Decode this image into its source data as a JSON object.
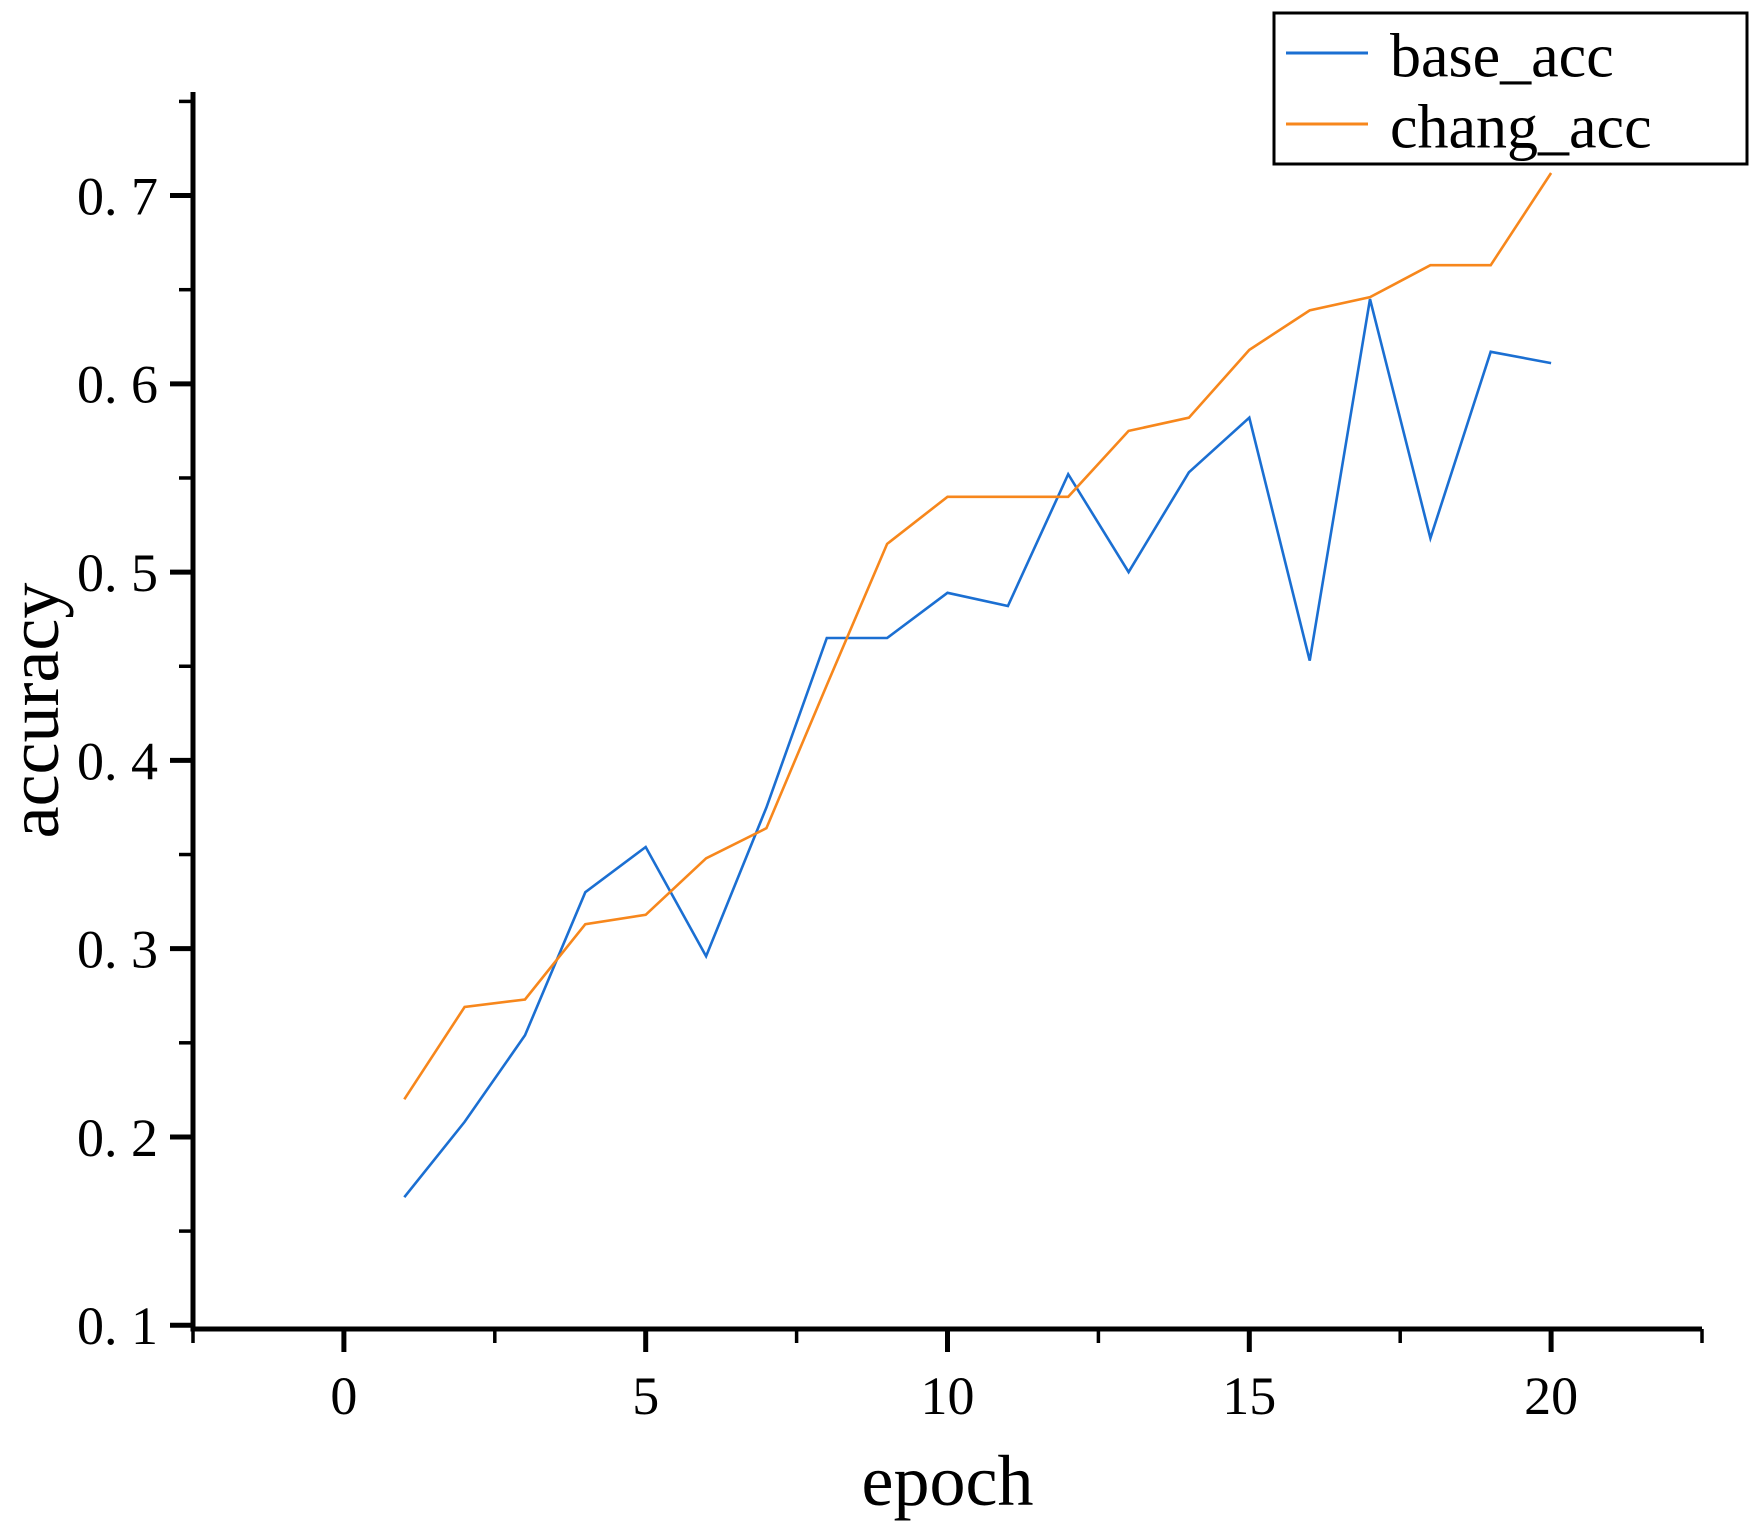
{
  "chart_data": {
    "type": "line",
    "title": "",
    "xlabel": "epoch",
    "ylabel": "accuracy",
    "xlim": [
      -2.5,
      22.5
    ],
    "ylim": [
      0.098,
      0.755
    ],
    "grid": false,
    "legend_position": "upper right",
    "x_major_ticks": [
      0,
      5,
      10,
      15,
      20
    ],
    "x_minor_ticks": [
      -2.5,
      2.5,
      7.5,
      12.5,
      17.5,
      22.5
    ],
    "x_tick_labels": [
      "0",
      "5",
      "10",
      "15",
      "20"
    ],
    "y_major_ticks": [
      0.1,
      0.2,
      0.3,
      0.4,
      0.5,
      0.6,
      0.7
    ],
    "y_minor_ticks": [
      0.15,
      0.25,
      0.35,
      0.45,
      0.55,
      0.65,
      0.75
    ],
    "y_tick_labels": [
      "0. 1",
      "0. 2",
      "0. 3",
      "0. 4",
      "0. 5",
      "0. 6",
      "0. 7"
    ],
    "x": [
      1,
      2,
      3,
      4,
      5,
      6,
      7,
      8,
      9,
      10,
      11,
      12,
      13,
      14,
      15,
      16,
      17,
      18,
      19,
      20
    ],
    "series": [
      {
        "name": "base_acc",
        "color": "#1b6fd2",
        "values": [
          0.168,
          0.208,
          0.254,
          0.33,
          0.354,
          0.296,
          0.375,
          0.465,
          0.465,
          0.489,
          0.482,
          0.552,
          0.5,
          0.553,
          0.582,
          0.453,
          0.645,
          0.518,
          0.617,
          0.611
        ]
      },
      {
        "name": "chang_acc",
        "color": "#f7871c",
        "values": [
          0.22,
          0.269,
          0.273,
          0.313,
          0.318,
          0.348,
          0.364,
          0.44,
          0.515,
          0.54,
          0.54,
          0.54,
          0.575,
          0.582,
          0.618,
          0.639,
          0.646,
          0.663,
          0.663,
          0.712
        ]
      }
    ],
    "axis_color": "#000000",
    "legend_border_color": "#000000",
    "background_color": "#ffffff"
  }
}
